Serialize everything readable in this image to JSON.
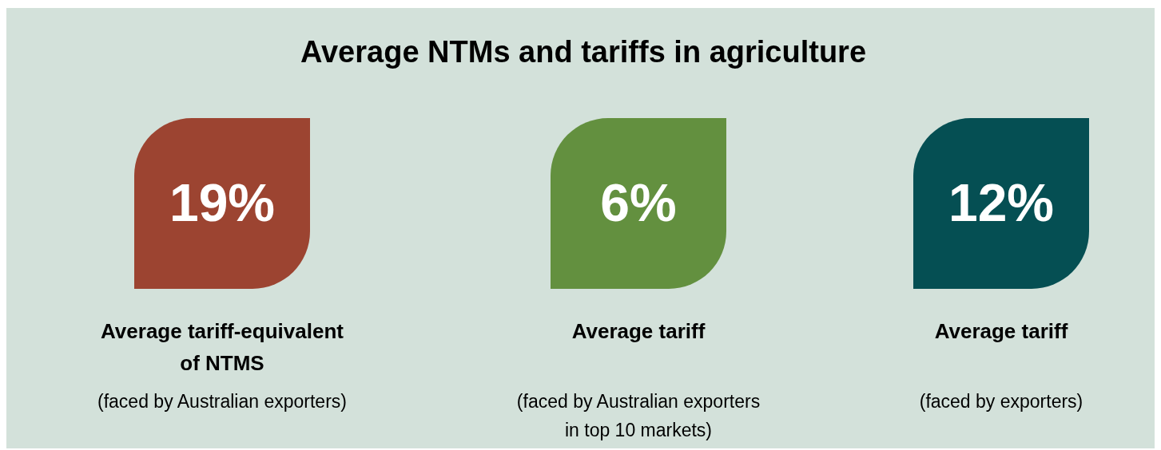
{
  "chart_data": {
    "type": "other",
    "title": "Average NTMs and tariffs in agriculture",
    "categories": [
      "Average tariff-equivalent of NTMS",
      "Average tariff",
      "Average tariff"
    ],
    "values": [
      19,
      6,
      12
    ],
    "value_labels": [
      "19%",
      "6%",
      "12%"
    ],
    "colors": [
      "#9c4431",
      "#63903f",
      "#054f53"
    ],
    "annotations": [
      "(faced by Australian exporters)",
      "(faced by Australian exporters in top 10 markets)",
      "(faced by exporters)"
    ]
  }
}
